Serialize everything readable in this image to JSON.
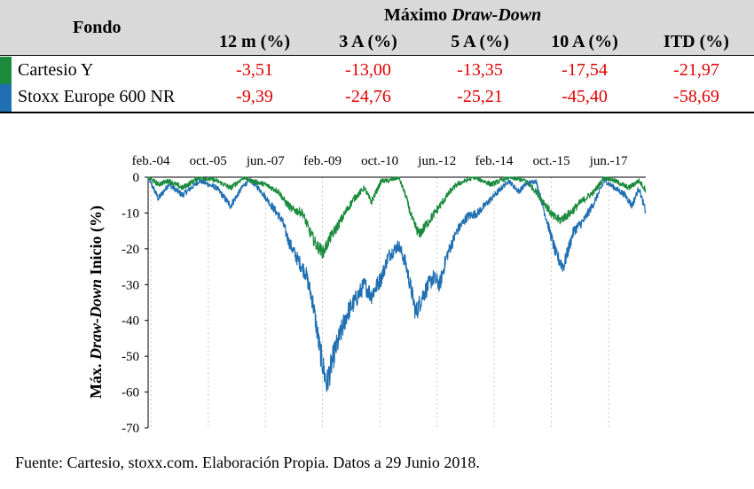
{
  "table": {
    "fondo_header": "Fondo",
    "group_header_prefix": "Máximo ",
    "group_header_emph": "Draw-Down",
    "columns": [
      "12 m (%)",
      "3 A (%)",
      "5 A (%)",
      "10 A (%)",
      "ITD (%)"
    ],
    "rows": [
      {
        "name": "Cartesio Y",
        "color": "#1a8a3c",
        "values": [
          "-3,51",
          "-13,00",
          "-13,35",
          "-17,54",
          "-21,97"
        ]
      },
      {
        "name": "Stoxx Europe 600 NR",
        "color": "#1f6fb2",
        "values": [
          "-9,39",
          "-24,76",
          "-25,21",
          "-45,40",
          "-58,69"
        ]
      }
    ],
    "value_color": "#e00000"
  },
  "chart_data": {
    "type": "line",
    "title": "",
    "ylabel_prefix": "Máx. ",
    "ylabel_emph": "Draw-Down",
    "ylabel_suffix": " Inicio (%)",
    "x_tick_labels": [
      "feb.-04",
      "oct.-05",
      "jun.-07",
      "feb.-09",
      "oct.-10",
      "jun.-12",
      "feb.-14",
      "oct.-15",
      "jun.-17"
    ],
    "x_tick_dates": [
      2004.08,
      2005.75,
      2007.42,
      2009.08,
      2010.75,
      2012.42,
      2014.08,
      2015.75,
      2017.42
    ],
    "xlim": [
      2004.0,
      2018.5
    ],
    "y_ticks": [
      0,
      -10,
      -20,
      -30,
      -40,
      -50,
      -60,
      -70
    ],
    "ylim": [
      -70,
      0
    ],
    "grid": "vertical-dotted",
    "series": [
      {
        "name": "Cartesio Y",
        "color": "#1a8a3c",
        "x": [
          2004.0,
          2004.3,
          2004.6,
          2005.0,
          2005.5,
          2006.0,
          2006.4,
          2006.8,
          2007.0,
          2007.4,
          2007.8,
          2008.0,
          2008.2,
          2008.5,
          2008.7,
          2008.9,
          2009.1,
          2009.3,
          2009.5,
          2009.8,
          2010.0,
          2010.3,
          2010.5,
          2010.8,
          2011.0,
          2011.3,
          2011.5,
          2011.7,
          2011.9,
          2012.2,
          2012.5,
          2012.8,
          2013.0,
          2013.5,
          2014.0,
          2014.5,
          2015.0,
          2015.3,
          2015.6,
          2015.8,
          2016.0,
          2016.3,
          2016.6,
          2017.0,
          2017.3,
          2017.6,
          2018.0,
          2018.3,
          2018.49
        ],
        "values": [
          0,
          -2,
          -1,
          -3,
          0,
          -1,
          -3,
          0,
          -1,
          -2,
          -4,
          -7,
          -9,
          -10,
          -15,
          -19,
          -21,
          -17,
          -14,
          -9,
          -6,
          -3,
          -7,
          -1,
          -1,
          0,
          -5,
          -12,
          -16,
          -12,
          -8,
          -4,
          -2,
          0,
          -2,
          0,
          -1,
          -4,
          -8,
          -11,
          -12,
          -10,
          -7,
          -4,
          0,
          -1,
          -3,
          -1,
          -3.5
        ]
      },
      {
        "name": "Stoxx Europe 600 NR",
        "color": "#1f6fb2",
        "x": [
          2004.0,
          2004.3,
          2004.6,
          2005.0,
          2005.5,
          2006.0,
          2006.4,
          2006.8,
          2007.0,
          2007.3,
          2007.6,
          2007.9,
          2008.1,
          2008.3,
          2008.6,
          2008.8,
          2009.0,
          2009.1,
          2009.2,
          2009.4,
          2009.6,
          2009.8,
          2010.0,
          2010.3,
          2010.5,
          2010.8,
          2011.0,
          2011.3,
          2011.5,
          2011.7,
          2011.8,
          2012.0,
          2012.3,
          2012.5,
          2012.7,
          2013.0,
          2013.3,
          2013.6,
          2014.0,
          2014.3,
          2014.5,
          2014.8,
          2015.0,
          2015.3,
          2015.5,
          2015.7,
          2015.9,
          2016.1,
          2016.4,
          2016.7,
          2017.0,
          2017.3,
          2017.6,
          2017.9,
          2018.1,
          2018.3,
          2018.49
        ],
        "values": [
          0,
          -6,
          -2,
          -5,
          -1,
          -3,
          -8,
          -2,
          -1,
          -4,
          -8,
          -12,
          -18,
          -22,
          -27,
          -35,
          -48,
          -53,
          -58,
          -50,
          -44,
          -38,
          -35,
          -30,
          -33,
          -28,
          -22,
          -19,
          -24,
          -33,
          -38,
          -33,
          -28,
          -30,
          -22,
          -15,
          -11,
          -10,
          -6,
          -3,
          -1,
          -4,
          -2,
          -1,
          -8,
          -15,
          -22,
          -25,
          -15,
          -12,
          -7,
          -1,
          -3,
          -5,
          -8,
          -3,
          -9.5
        ]
      }
    ]
  },
  "source": "Fuente: Cartesio, stoxx.com. Elaboración Propia. Datos a 29 Junio 2018."
}
